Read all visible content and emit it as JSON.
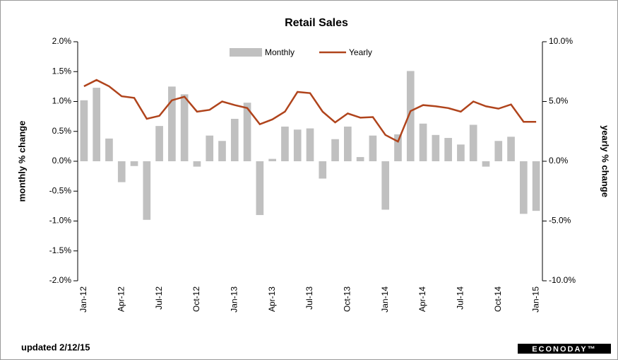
{
  "chart_data": {
    "type": "bar_line",
    "title": "Retail Sales",
    "categories": [
      "Jan-12",
      null,
      null,
      "Apr-12",
      null,
      null,
      "Jul-12",
      null,
      null,
      "Oct-12",
      null,
      null,
      "Jan-13",
      null,
      null,
      "Apr-13",
      null,
      null,
      "Jul-13",
      null,
      null,
      "Oct-13",
      null,
      null,
      "Jan-14",
      null,
      null,
      "Apr-14",
      null,
      null,
      "Jul-14",
      null,
      null,
      "Oct-14",
      null,
      null,
      "Jan-15"
    ],
    "series": [
      {
        "name": "Monthly",
        "color": "#c0c0c0",
        "type": "bar",
        "axis": "y",
        "values": [
          1.02,
          1.23,
          0.38,
          -0.35,
          -0.08,
          -0.98,
          0.59,
          1.25,
          1.12,
          -0.09,
          0.43,
          0.34,
          0.71,
          0.98,
          -0.9,
          0.04,
          0.58,
          0.53,
          0.55,
          -0.29,
          0.37,
          0.58,
          0.07,
          0.43,
          -0.81,
          0.45,
          1.51,
          0.63,
          0.44,
          0.39,
          0.28,
          0.61,
          -0.09,
          0.34,
          0.41,
          -0.88,
          -0.83
        ]
      },
      {
        "name": "Yearly",
        "color": "#b0441c",
        "type": "line",
        "axis": "y2",
        "values": [
          6.27,
          6.8,
          6.27,
          5.44,
          5.3,
          3.55,
          3.8,
          5.1,
          5.4,
          4.15,
          4.3,
          5.0,
          4.7,
          4.45,
          3.1,
          3.5,
          4.15,
          5.8,
          5.7,
          4.15,
          3.25,
          4.0,
          3.65,
          3.7,
          2.2,
          1.65,
          4.2,
          4.7,
          4.6,
          4.45,
          4.15,
          5.0,
          4.6,
          4.4,
          4.75,
          3.3,
          3.3
        ]
      }
    ],
    "ylabel": "monthly % change",
    "y2label": "yearly % change",
    "ylim": [
      -2,
      2
    ],
    "yticks": [
      {
        "value": -2,
        "label": "-2.0%"
      },
      {
        "value": -1.5,
        "label": "-1.5%"
      },
      {
        "value": -1,
        "label": "-1.0%"
      },
      {
        "value": -0.5,
        "label": "-0.5%"
      },
      {
        "value": 0,
        "label": "0.0%"
      },
      {
        "value": 0.5,
        "label": "0.5%"
      },
      {
        "value": 1,
        "label": "1.0%"
      },
      {
        "value": 1.5,
        "label": "1.5%"
      },
      {
        "value": 2,
        "label": "2.0%"
      }
    ],
    "y2lim": [
      -10,
      10
    ],
    "y2ticks": [
      {
        "value": -10,
        "label": "-10.0%"
      },
      {
        "value": -5,
        "label": "-5.0%"
      },
      {
        "value": 0,
        "label": "0.0%"
      },
      {
        "value": 5,
        "label": "5.0%"
      },
      {
        "value": 10,
        "label": "10.0%"
      }
    ],
    "legend": "top",
    "footnote": "updated 2/12/15",
    "source": "ECONODAY™"
  }
}
